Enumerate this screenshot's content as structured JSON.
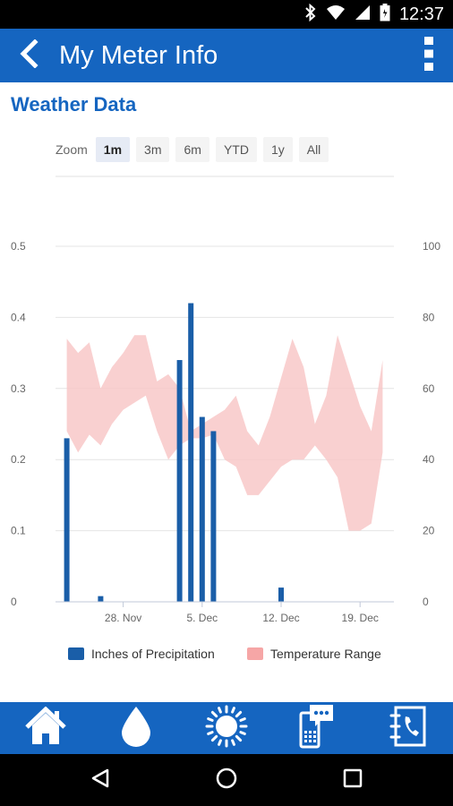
{
  "status_bar": {
    "time": "12:37",
    "icons": [
      "bluetooth-icon",
      "wifi-icon",
      "signal-icon",
      "battery-icon"
    ]
  },
  "app_bar": {
    "title": "My Meter Info",
    "back_icon": "back-arrow-icon",
    "menu_icon": "overflow-menu-icon",
    "color": "#1565c0"
  },
  "section_title": "Weather Data",
  "zoom": {
    "label": "Zoom",
    "options": [
      "1m",
      "3m",
      "6m",
      "YTD",
      "1y",
      "All"
    ],
    "selected": "1m"
  },
  "chart_data": {
    "type": "bar",
    "title": "",
    "x_ticks": [
      "28. Nov",
      "5. Dec",
      "12. Dec",
      "19. Dec"
    ],
    "x_tick_days": [
      28,
      35,
      42,
      49
    ],
    "y_left": {
      "ticks": [
        "0",
        "0.1",
        "0.2",
        "0.3",
        "0.4",
        "0.5"
      ],
      "range": [
        0,
        0.5
      ]
    },
    "y_right": {
      "ticks": [
        "0",
        "20",
        "40",
        "60",
        "80",
        "100"
      ],
      "range": [
        0,
        100
      ]
    },
    "grid": true,
    "legend_position": "bottom",
    "series": [
      {
        "name": "Inches of Precipitation",
        "type": "bar",
        "axis": "left",
        "color": "#1a5ea8",
        "points": [
          {
            "x": 23,
            "y": 0.23
          },
          {
            "x": 26,
            "y": 0.008
          },
          {
            "x": 33,
            "y": 0.34
          },
          {
            "x": 34,
            "y": 0.42
          },
          {
            "x": 35,
            "y": 0.26
          },
          {
            "x": 36,
            "y": 0.24
          },
          {
            "x": 42,
            "y": 0.02
          }
        ]
      },
      {
        "name": "Temperature Range",
        "type": "arearange",
        "axis": "right",
        "color": "#f8c8c8",
        "points": [
          {
            "x": 23,
            "low": 48,
            "high": 74
          },
          {
            "x": 24,
            "low": 42,
            "high": 70
          },
          {
            "x": 25,
            "low": 47,
            "high": 73
          },
          {
            "x": 26,
            "low": 44,
            "high": 60
          },
          {
            "x": 27,
            "low": 50,
            "high": 66
          },
          {
            "x": 28,
            "low": 54,
            "high": 70
          },
          {
            "x": 29,
            "low": 56,
            "high": 75
          },
          {
            "x": 30,
            "low": 58,
            "high": 75
          },
          {
            "x": 31,
            "low": 48,
            "high": 62
          },
          {
            "x": 32,
            "low": 40,
            "high": 64
          },
          {
            "x": 33,
            "low": 44,
            "high": 60
          },
          {
            "x": 34,
            "low": 46,
            "high": 48
          },
          {
            "x": 35,
            "low": 46,
            "high": 50
          },
          {
            "x": 36,
            "low": 47,
            "high": 52
          },
          {
            "x": 37,
            "low": 40,
            "high": 54
          },
          {
            "x": 38,
            "low": 38,
            "high": 58
          },
          {
            "x": 39,
            "low": 30,
            "high": 48
          },
          {
            "x": 40,
            "low": 30,
            "high": 44
          },
          {
            "x": 41,
            "low": 34,
            "high": 52
          },
          {
            "x": 42,
            "low": 38,
            "high": 63
          },
          {
            "x": 43,
            "low": 40,
            "high": 74
          },
          {
            "x": 44,
            "low": 40,
            "high": 66
          },
          {
            "x": 45,
            "low": 44,
            "high": 50
          },
          {
            "x": 46,
            "low": 40,
            "high": 58
          },
          {
            "x": 47,
            "low": 35,
            "high": 75
          },
          {
            "x": 48,
            "low": 20,
            "high": 65
          },
          {
            "x": 49,
            "low": 20,
            "high": 55
          },
          {
            "x": 50,
            "low": 22,
            "high": 48
          },
          {
            "x": 51,
            "low": 42,
            "high": 68
          }
        ]
      }
    ]
  },
  "bottom_nav": [
    {
      "name": "home",
      "icon": "home-icon"
    },
    {
      "name": "water",
      "icon": "water-drop-icon"
    },
    {
      "name": "weather",
      "icon": "sun-icon"
    },
    {
      "name": "messages",
      "icon": "mobile-chat-icon"
    },
    {
      "name": "contact",
      "icon": "phone-book-icon"
    }
  ],
  "system_nav": [
    "back-triangle-icon",
    "home-circle-icon",
    "recents-square-icon"
  ]
}
